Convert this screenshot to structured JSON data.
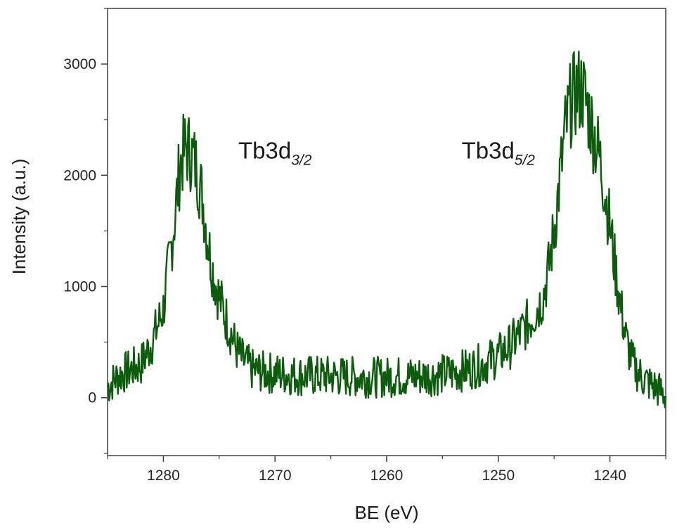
{
  "chart_data": {
    "type": "line",
    "xlabel": "BE (eV)",
    "ylabel": "Intensity (a.u.)",
    "xlim": [
      1285,
      1235
    ],
    "ylim": [
      -520,
      3500
    ],
    "x_reversed": true,
    "x_ticks": [
      1280,
      1270,
      1260,
      1250,
      1240
    ],
    "y_ticks": [
      0,
      1000,
      2000,
      3000
    ],
    "x_tick_labels": [
      "1280",
      "1270",
      "1260",
      "1250",
      "1240"
    ],
    "y_tick_labels": [
      "0",
      "1000",
      "2000",
      "3000"
    ],
    "grid": false,
    "legend": "none",
    "series_color": "#0d5c0d",
    "series": [
      {
        "x": [
          1285,
          1284,
          1283,
          1282,
          1281,
          1280,
          1279.5,
          1279,
          1278.5,
          1278,
          1277.5,
          1277,
          1276.5,
          1276,
          1275.5,
          1275,
          1274.5,
          1274,
          1273.5,
          1273,
          1272.5,
          1272,
          1271,
          1270,
          1269,
          1268,
          1267,
          1266,
          1265,
          1264,
          1263,
          1262,
          1261,
          1260,
          1259,
          1258,
          1257,
          1256,
          1255,
          1254,
          1253,
          1252,
          1251,
          1250,
          1249,
          1248,
          1247,
          1246,
          1245.5,
          1245,
          1244.5,
          1244,
          1243.5,
          1243,
          1242.5,
          1242,
          1241.5,
          1241,
          1240.5,
          1240,
          1239.5,
          1239,
          1238.5,
          1238,
          1237.5,
          1237,
          1236.5,
          1236,
          1235.5,
          1235
        ],
        "y": [
          100,
          200,
          250,
          300,
          500,
          800,
          1200,
          1600,
          2100,
          2250,
          2200,
          2050,
          1800,
          1400,
          1100,
          900,
          750,
          600,
          450,
          350,
          300,
          250,
          230,
          220,
          210,
          200,
          200,
          195,
          195,
          190,
          190,
          185,
          185,
          185,
          190,
          190,
          195,
          200,
          210,
          225,
          250,
          280,
          320,
          380,
          460,
          580,
          720,
          900,
          1150,
          1500,
          1950,
          2400,
          2650,
          2750,
          2780,
          2600,
          2400,
          2200,
          1900,
          1550,
          1150,
          800,
          500,
          320,
          230,
          170,
          130,
          100,
          60,
          20
        ]
      }
    ],
    "annotations": [
      {
        "text": "Tb3d",
        "subscript": "3/2",
        "x": 1270,
        "y": 2150
      },
      {
        "text": "Tb3d",
        "subscript": "5/2",
        "x": 1250,
        "y": 2150
      }
    ]
  }
}
